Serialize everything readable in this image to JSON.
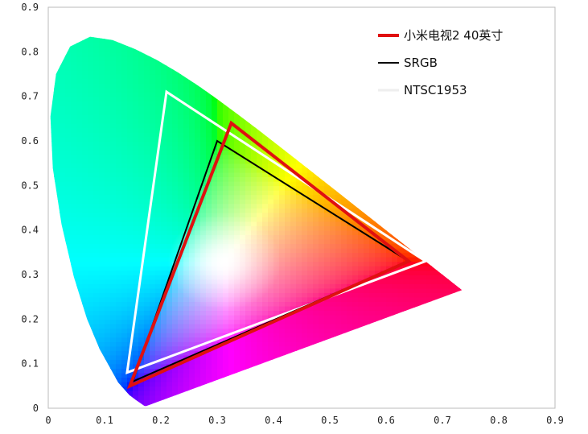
{
  "chart_data": {
    "type": "scatter",
    "title": "",
    "xlabel": "",
    "ylabel": "",
    "xlim": [
      0,
      0.9
    ],
    "ylim": [
      0,
      0.9
    ],
    "x_ticks": [
      "0",
      "0.1",
      "0.2",
      "0.3",
      "0.4",
      "0.5",
      "0.6",
      "0.7",
      "0.8",
      "0.9"
    ],
    "y_ticks": [
      "0",
      "0.1",
      "0.2",
      "0.3",
      "0.4",
      "0.5",
      "0.6",
      "0.7",
      "0.8",
      "0.9"
    ],
    "grid": false,
    "legend_position": "top-right",
    "background": "CIE 1931 chromaticity diagram",
    "spectral_locus": [
      [
        0.1741,
        0.005
      ],
      [
        0.1738,
        0.0049
      ],
      [
        0.1733,
        0.0048
      ],
      [
        0.1726,
        0.0048
      ],
      [
        0.1714,
        0.0051
      ],
      [
        0.1689,
        0.0069
      ],
      [
        0.1644,
        0.0109
      ],
      [
        0.1566,
        0.0177
      ],
      [
        0.144,
        0.0297
      ],
      [
        0.1241,
        0.0578
      ],
      [
        0.0913,
        0.1327
      ],
      [
        0.0687,
        0.2007
      ],
      [
        0.0454,
        0.295
      ],
      [
        0.0235,
        0.4127
      ],
      [
        0.0082,
        0.5384
      ],
      [
        0.0039,
        0.6548
      ],
      [
        0.0139,
        0.7502
      ],
      [
        0.0389,
        0.812
      ],
      [
        0.0743,
        0.8338
      ],
      [
        0.1142,
        0.8262
      ],
      [
        0.1547,
        0.8059
      ],
      [
        0.1929,
        0.7816
      ],
      [
        0.2296,
        0.7543
      ],
      [
        0.2658,
        0.7243
      ],
      [
        0.3016,
        0.6923
      ],
      [
        0.3373,
        0.6589
      ],
      [
        0.3731,
        0.6245
      ],
      [
        0.4087,
        0.5896
      ],
      [
        0.4441,
        0.5547
      ],
      [
        0.4788,
        0.5202
      ],
      [
        0.5125,
        0.4866
      ],
      [
        0.5448,
        0.4544
      ],
      [
        0.5752,
        0.4242
      ],
      [
        0.6029,
        0.3965
      ],
      [
        0.627,
        0.3725
      ],
      [
        0.6482,
        0.3514
      ],
      [
        0.6658,
        0.334
      ],
      [
        0.6801,
        0.3197
      ],
      [
        0.6915,
        0.3083
      ],
      [
        0.7006,
        0.2993
      ],
      [
        0.7079,
        0.292
      ],
      [
        0.714,
        0.2859
      ],
      [
        0.719,
        0.2809
      ],
      [
        0.723,
        0.277
      ],
      [
        0.726,
        0.274
      ],
      [
        0.7347,
        0.2653
      ]
    ],
    "series": [
      {
        "name": "小米电视2 40英寸",
        "color": "#e01010",
        "points": [
          [
            0.64,
            0.33
          ],
          [
            0.325,
            0.64
          ],
          [
            0.145,
            0.05
          ]
        ]
      },
      {
        "name": "SRGB",
        "color": "#000000",
        "points": [
          [
            0.64,
            0.33
          ],
          [
            0.3,
            0.6
          ],
          [
            0.15,
            0.06
          ]
        ]
      },
      {
        "name": "NTSC1953",
        "color": "#ffffff",
        "points": [
          [
            0.67,
            0.33
          ],
          [
            0.21,
            0.71
          ],
          [
            0.14,
            0.08
          ]
        ]
      }
    ]
  }
}
